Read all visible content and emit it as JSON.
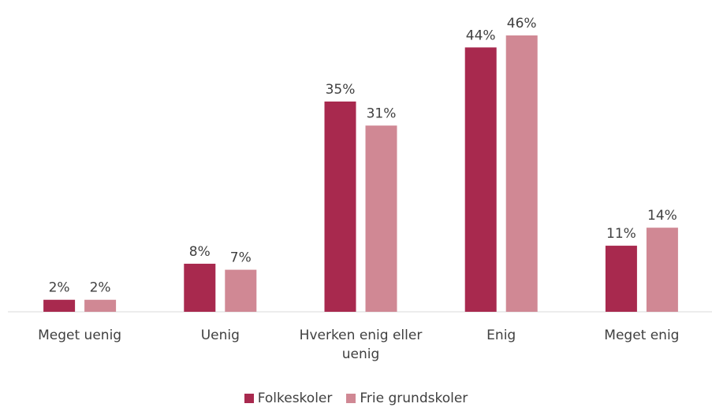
{
  "chart_data": {
    "type": "bar",
    "categories": [
      "Meget uenig",
      "Uenig",
      "Hverken enig eller uenig",
      "Enig",
      "Meget enig"
    ],
    "series": [
      {
        "name": "Folkeskoler",
        "color": "#a8294e",
        "values": [
          2,
          8,
          35,
          44,
          11
        ],
        "value_labels": [
          "2%",
          "8%",
          "35%",
          "44%",
          "11%"
        ]
      },
      {
        "name": "Frie grundskoler",
        "color": "#d08894",
        "values": [
          2,
          7,
          31,
          46,
          14
        ],
        "value_labels": [
          "2%",
          "7%",
          "31%",
          "46%",
          "14%"
        ]
      }
    ],
    "legend": "bottom"
  }
}
